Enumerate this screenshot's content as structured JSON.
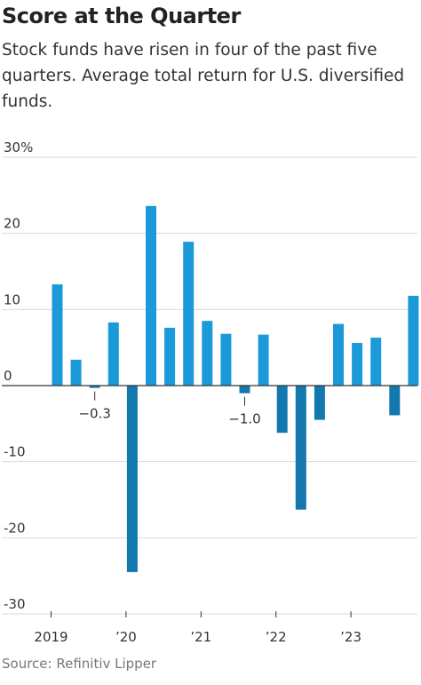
{
  "title": "Score at the Quarter",
  "subtitle": "Stock funds have risen in four of the past five quarters. Average total return for U.S. diversified funds.",
  "source": "Source: Refinitiv Lipper",
  "colors": {
    "positive": "#1a9ad9",
    "negative": "#1278ad",
    "grid": "#d9d9d9",
    "zero_line": "#333333",
    "text": "#333333"
  },
  "chart_data": {
    "type": "bar",
    "title": "Score at the Quarter",
    "ylabel": "",
    "xlabel": "",
    "ylim": [
      -30,
      30
    ],
    "grid": true,
    "y_ticks": [
      {
        "value": 30,
        "label": "30%"
      },
      {
        "value": 20,
        "label": "20"
      },
      {
        "value": 10,
        "label": "10"
      },
      {
        "value": 0,
        "label": "0"
      },
      {
        "value": -10,
        "label": "-10"
      },
      {
        "value": -20,
        "label": "-20"
      },
      {
        "value": -30,
        "label": "-30"
      }
    ],
    "x_year_labels": [
      {
        "label": "2019",
        "quarter_index": 0
      },
      {
        "label": "’20",
        "quarter_index": 4
      },
      {
        "label": "’21",
        "quarter_index": 8
      },
      {
        "label": "’22",
        "quarter_index": 12
      },
      {
        "label": "’23",
        "quarter_index": 16
      }
    ],
    "categories": [
      "2019 Q1",
      "2019 Q2",
      "2019 Q3",
      "2019 Q4",
      "2020 Q1",
      "2020 Q2",
      "2020 Q3",
      "2020 Q4",
      "2021 Q1",
      "2021 Q2",
      "2021 Q3",
      "2021 Q4",
      "2022 Q1",
      "2022 Q2",
      "2022 Q3",
      "2022 Q4",
      "2023 Q1",
      "2023 Q2",
      "2023 Q3",
      "2023 Q4"
    ],
    "values": [
      13.3,
      3.4,
      -0.3,
      8.3,
      -24.5,
      23.6,
      7.6,
      18.9,
      8.5,
      6.8,
      -1.0,
      6.7,
      -6.2,
      -16.3,
      -4.5,
      8.1,
      5.6,
      6.3,
      -3.9,
      11.8
    ],
    "annotations": [
      {
        "text": "−0.3",
        "quarter_index": 2
      },
      {
        "text": "−1.0",
        "quarter_index": 10
      }
    ]
  }
}
